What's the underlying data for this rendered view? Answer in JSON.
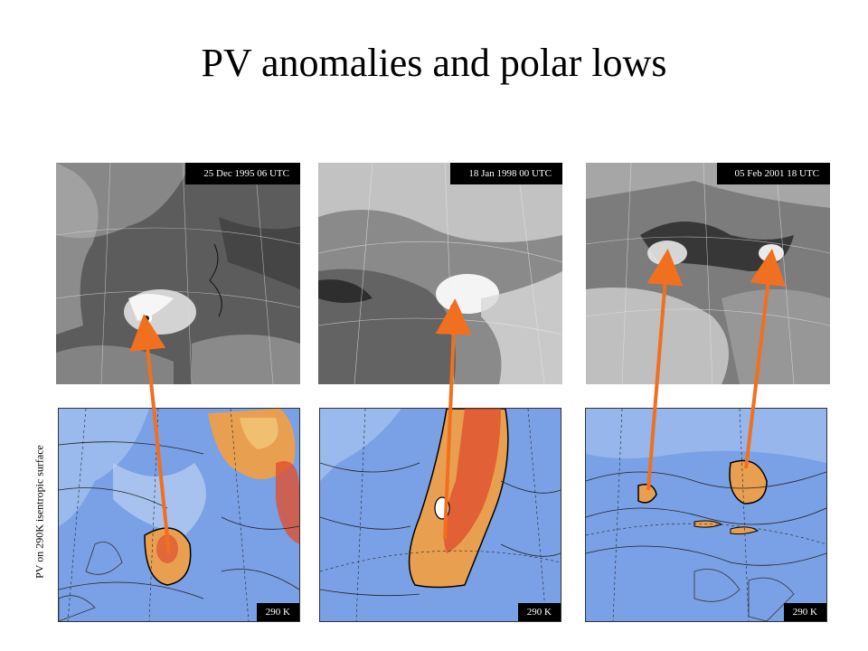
{
  "title": "PV anomalies and polar lows",
  "side_label": "PV on 290K isentropic surface",
  "satellite_images": [
    {
      "date": "25 Dec 1995 06 UTC"
    },
    {
      "date": "18 Jan 1998 00  UTC"
    },
    {
      "date": "05 Feb 2001 18  UTC"
    }
  ],
  "pv_maps": [
    {
      "level": "290 K"
    },
    {
      "level": "290 K"
    },
    {
      "level": "290 K"
    }
  ],
  "colors": {
    "arrow": "#f07020",
    "pv_background": "#7aa0e6",
    "pv_anomaly": "#e8a050",
    "pv_core": "#e05030"
  }
}
